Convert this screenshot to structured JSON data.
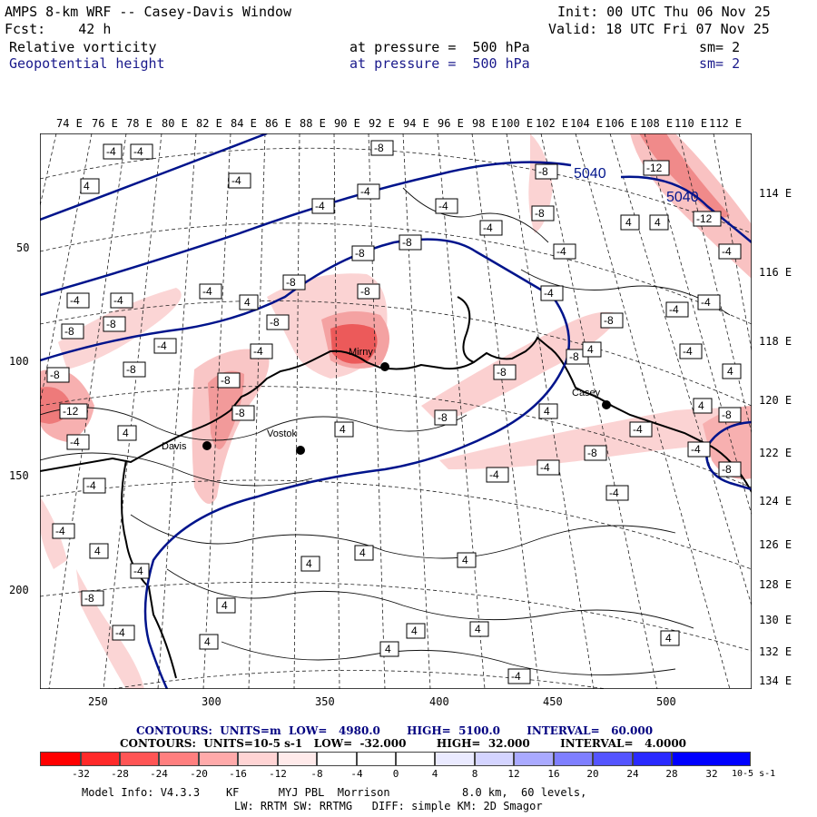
{
  "header": {
    "title": "AMPS 8-km WRF -- Casey-Davis Window",
    "fcst": "Fcst:    42 h",
    "init": "Init: 00 UTC Thu 06 Nov 25",
    "valid": "Valid: 18 UTC Fri 07 Nov 25",
    "field1_name": "Relative vorticity",
    "field1_level": "at pressure =  500 hPa",
    "field1_sm": "sm= 2",
    "field2_name": "Geopotential height",
    "field2_level": "at pressure =  500 hPa",
    "field2_sm": "sm= 2"
  },
  "map": {
    "top_lon_labels": [
      "74 E",
      "76 E",
      "78 E",
      "80 E",
      "82 E",
      "84 E",
      "86 E",
      "88 E",
      "90 E",
      "92 E",
      "94 E",
      "96 E",
      "98 E",
      "100 E",
      "102 E",
      "104 E",
      "106 E",
      "108 E",
      "110 E",
      "112 E"
    ],
    "right_lon_labels": [
      "114 E",
      "116 E",
      "118 E",
      "120 E",
      "122 E",
      "124 E",
      "126 E",
      "128 E",
      "130 E",
      "132 E",
      "134 E"
    ],
    "left_y_labels": [
      "50",
      "100",
      "150",
      "200"
    ],
    "bottom_x_labels": [
      "250",
      "300",
      "350",
      "400",
      "450",
      "500"
    ],
    "station_labels": [
      "Davis",
      "Casey",
      "Mirny",
      "Vostok"
    ],
    "height_contour_labels": [
      "5040",
      "5040"
    ],
    "colors": {
      "height_contour": "#00148c",
      "coast": "#000000",
      "neg_light": "#fbe0e0",
      "neg_mid": "#f4a8a8",
      "neg_strong": "#ec5a5a"
    }
  },
  "contour_info": {
    "line1": "CONTOURS:  UNITS=m  LOW=   4980.0       HIGH=  5100.0       INTERVAL=   60.000",
    "line2": "CONTOURS:  UNITS=10-5 s-1   LOW=  -32.000        HIGH=  32.000        INTERVAL=   4.0000"
  },
  "colorbar": {
    "labels": [
      "-32",
      "-28",
      "-24",
      "-20",
      "-16",
      "-12",
      "-8",
      "-4",
      "0",
      "4",
      "8",
      "12",
      "16",
      "20",
      "24",
      "28",
      "32"
    ],
    "unit": "10-5 s-1",
    "colors": [
      "#ff0000",
      "#ff2a2a",
      "#ff5555",
      "#ff7f7f",
      "#ffaaaa",
      "#ffd4d4",
      "#ffeaea",
      "#ffffff",
      "#ffffff",
      "#ffffff",
      "#eaeaff",
      "#d4d4ff",
      "#aaaaff",
      "#7f7fff",
      "#5555ff",
      "#2a2aff",
      "#0000ff"
    ]
  },
  "footer": {
    "line1": "Model Info: V4.3.3    KF      MYJ PBL  Morrison           8.0 km,  60 levels,",
    "line2": "LW: RRTM SW: RRTMG   DIFF: simple KM: 2D Smagor"
  }
}
